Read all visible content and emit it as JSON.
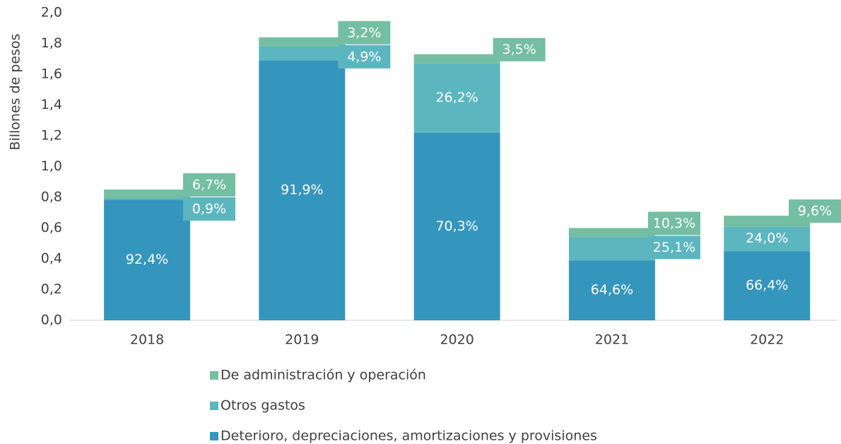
{
  "chart_data": {
    "type": "stacked_bar",
    "y_label": "Billones de pesos",
    "categories": [
      "2018",
      "2019",
      "2020",
      "2021",
      "2022"
    ],
    "ylim": [
      0,
      2
    ],
    "yticks": [
      {
        "value": 0,
        "label": "0,0"
      },
      {
        "value": 0.2,
        "label": "0,2"
      },
      {
        "value": 0.4,
        "label": "0,4"
      },
      {
        "value": 0.6,
        "label": "0,6"
      },
      {
        "value": 0.8,
        "label": "0,8"
      },
      {
        "value": 1.0,
        "label": "1,0"
      },
      {
        "value": 1.2,
        "label": "1,2"
      },
      {
        "value": 1.4,
        "label": "1,4"
      },
      {
        "value": 1.6,
        "label": "1,6"
      },
      {
        "value": 1.8,
        "label": "1,8"
      },
      {
        "value": 2.0,
        "label": "2,0"
      }
    ],
    "series": [
      {
        "name": "Deterioro, depreciaciones, amortizaciones y provisiones",
        "color": "#3596bd",
        "values": [
          0.785,
          1.69,
          1.22,
          0.39,
          0.45
        ],
        "shares": [
          {
            "value": 92.4,
            "label": "92,4%"
          },
          {
            "value": 91.9,
            "label": "91,9%"
          },
          {
            "value": 70.3,
            "label": "70,3%"
          },
          {
            "value": 64.6,
            "label": "64,6%"
          },
          {
            "value": 66.4,
            "label": "66,4%"
          }
        ]
      },
      {
        "name": "Otros gastos",
        "color": "#5bb6c0",
        "values": [
          0.008,
          0.09,
          0.45,
          0.15,
          0.16
        ],
        "shares": [
          {
            "value": 0.9,
            "label": "0,9%"
          },
          {
            "value": 4.9,
            "label": "4,9%"
          },
          {
            "value": 26.2,
            "label": "26,2%"
          },
          {
            "value": 25.1,
            "label": "25,1%"
          },
          {
            "value": 24.0,
            "label": "24,0%"
          }
        ]
      },
      {
        "name": "De administración y operación",
        "color": "#74bea3",
        "values": [
          0.057,
          0.06,
          0.06,
          0.06,
          0.07
        ],
        "shares": [
          {
            "value": 6.7,
            "label": "6,7%"
          },
          {
            "value": 3.2,
            "label": "3,2%"
          },
          {
            "value": 3.5,
            "label": "3,5%"
          },
          {
            "value": 10.3,
            "label": "10,3%"
          },
          {
            "value": 9.6,
            "label": "9,6%"
          }
        ]
      }
    ]
  }
}
